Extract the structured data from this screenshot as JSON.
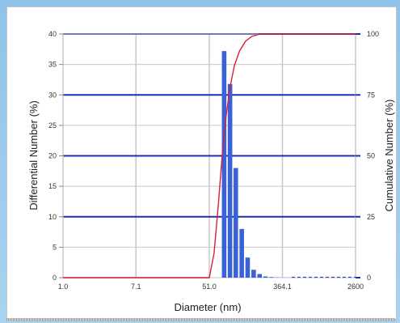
{
  "chart_data": {
    "type": "bar",
    "xlabel": "Diameter (nm)",
    "ylabel": "Differential Number (%)",
    "y2label": "Cumulative Number (%)",
    "x_tick_labels": [
      "1.0",
      "7.1",
      "51.0",
      "364.1",
      "2600"
    ],
    "xlim": [
      1.0,
      2600
    ],
    "xscale": "log",
    "ylim": [
      0,
      40
    ],
    "y_ticks": [
      0,
      5,
      10,
      15,
      20,
      25,
      30,
      35,
      40
    ],
    "y2lim": [
      0,
      100
    ],
    "y2_ticks": [
      0,
      25,
      50,
      75,
      100
    ],
    "grid": true,
    "series": [
      {
        "kind": "bar",
        "color": "#3a62d6",
        "x": [
          76,
          89,
          104,
          122,
          143,
          168,
          197,
          231,
          271,
          318,
          373,
          438
        ],
        "values": [
          37.2,
          31.8,
          18.0,
          8.0,
          3.3,
          1.3,
          0.6,
          0.2,
          0.1,
          0.05,
          0.03,
          0.02
        ]
      },
      {
        "kind": "line",
        "axis": "right",
        "color": "#d8203a",
        "x": [
          1.0,
          51.0,
          58,
          65,
          72,
          80,
          89,
          100,
          115,
          135,
          160,
          200,
          260,
          2600
        ],
        "values": [
          0,
          0,
          10,
          30,
          50,
          66,
          78,
          87,
          93,
          97,
          99,
          100,
          100,
          100
        ]
      }
    ],
    "colors": {
      "major_grid": "#1a2fb5",
      "minor_grid": "#c8c8c8",
      "dashed_baseline": "#2b46c8"
    }
  }
}
